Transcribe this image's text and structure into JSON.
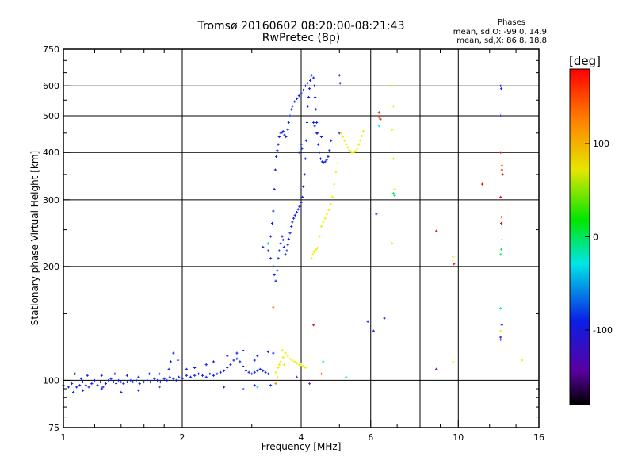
{
  "title": {
    "line1": "Tromsø 20160602 08:20:00-08:21:43",
    "line2": "RwPretec (8p)"
  },
  "phase_info": {
    "heading": "Phases",
    "line_o": "mean, sd,O: -99.0, 14.9",
    "line_x": "mean, sd,X:  86.8, 18.8"
  },
  "colorbar": {
    "unit_label": "[deg]",
    "tick_labels": [
      "100",
      "0",
      "-100"
    ],
    "tick_values": [
      100,
      0,
      -100
    ],
    "range": [
      -180,
      180
    ]
  },
  "chart_data": {
    "type": "scatter",
    "xlabel": "Frequency [MHz]",
    "ylabel": "Stationary phase Virtual Height [km]",
    "x_scale": "log",
    "y_scale": "log",
    "xlim": [
      1,
      16
    ],
    "ylim": [
      75,
      750
    ],
    "x_ticks": [
      1,
      2,
      4,
      6,
      10,
      16
    ],
    "x_tick_labels": [
      "1",
      "2",
      "4",
      "6",
      "10",
      "16"
    ],
    "x_gridlines": [
      2,
      4,
      6,
      8,
      10
    ],
    "y_ticks": [
      75,
      100,
      200,
      300,
      400,
      500,
      600,
      750
    ],
    "y_tick_labels": [
      "75",
      "100",
      "200",
      "300",
      "400",
      "500",
      "600",
      "750"
    ],
    "grid": true,
    "series": [
      {
        "color": "#0a1ee6",
        "points": [
          [
            1.0,
            97
          ],
          [
            1.03,
            96
          ],
          [
            1.05,
            98
          ],
          [
            1.08,
            96
          ],
          [
            1.1,
            97
          ],
          [
            1.12,
            99
          ],
          [
            1.14,
            97
          ],
          [
            1.16,
            96
          ],
          [
            1.18,
            98
          ],
          [
            1.2,
            100
          ],
          [
            1.22,
            97
          ],
          [
            1.24,
            99
          ],
          [
            1.26,
            96
          ],
          [
            1.28,
            98
          ],
          [
            1.3,
            100
          ],
          [
            1.32,
            101
          ],
          [
            1.34,
            99
          ],
          [
            1.36,
            98
          ],
          [
            1.38,
            100
          ],
          [
            1.4,
            99
          ],
          [
            1.42,
            98
          ],
          [
            1.45,
            99
          ],
          [
            1.48,
            100
          ],
          [
            1.5,
            99
          ],
          [
            1.53,
            100
          ],
          [
            1.56,
            98
          ],
          [
            1.6,
            99
          ],
          [
            1.63,
            100
          ],
          [
            1.66,
            99
          ],
          [
            1.7,
            101
          ],
          [
            1.73,
            100
          ],
          [
            1.76,
            99
          ],
          [
            1.8,
            101
          ],
          [
            1.83,
            100
          ],
          [
            1.86,
            102
          ],
          [
            1.9,
            101
          ],
          [
            1.93,
            100
          ],
          [
            1.96,
            102
          ],
          [
            2.0,
            101
          ],
          [
            2.05,
            103
          ],
          [
            2.1,
            102
          ],
          [
            2.15,
            103
          ],
          [
            2.2,
            104
          ],
          [
            2.25,
            103
          ],
          [
            2.3,
            102
          ],
          [
            2.35,
            104
          ],
          [
            2.4,
            103
          ],
          [
            2.45,
            104
          ],
          [
            2.5,
            105
          ],
          [
            2.55,
            106
          ],
          [
            2.6,
            108
          ],
          [
            2.65,
            110
          ],
          [
            2.7,
            113
          ],
          [
            2.75,
            114
          ],
          [
            2.8,
            112
          ],
          [
            2.85,
            109
          ],
          [
            2.9,
            106
          ],
          [
            2.95,
            105
          ],
          [
            3.0,
            104
          ],
          [
            3.05,
            105
          ],
          [
            3.1,
            106
          ],
          [
            3.15,
            107
          ],
          [
            3.2,
            106
          ],
          [
            3.25,
            105
          ],
          [
            3.3,
            104
          ],
          [
            1.07,
            104
          ],
          [
            1.11,
            101
          ],
          [
            1.15,
            103
          ],
          [
            1.25,
            103
          ],
          [
            1.35,
            104
          ],
          [
            1.45,
            103
          ],
          [
            1.55,
            102
          ],
          [
            1.65,
            104
          ],
          [
            1.75,
            104
          ],
          [
            1.85,
            107
          ],
          [
            1.87,
            112
          ],
          [
            1.9,
            118
          ],
          [
            1.95,
            113
          ],
          [
            2.05,
            107
          ],
          [
            2.15,
            108
          ],
          [
            2.3,
            110
          ],
          [
            2.4,
            112
          ],
          [
            2.6,
            116
          ],
          [
            2.75,
            118
          ],
          [
            2.85,
            120
          ],
          [
            3.05,
            113
          ],
          [
            3.1,
            116
          ],
          [
            3.3,
            119
          ],
          [
            3.4,
            118
          ],
          [
            1.06,
            93
          ],
          [
            1.12,
            94
          ],
          [
            1.25,
            95
          ],
          [
            1.4,
            93
          ],
          [
            1.55,
            94
          ],
          [
            1.75,
            96
          ],
          [
            2.55,
            96
          ],
          [
            2.85,
            95
          ],
          [
            3.05,
            97
          ],
          [
            3.35,
            97
          ],
          [
            3.2,
            225
          ],
          [
            3.3,
            220
          ],
          [
            3.35,
            210
          ],
          [
            3.4,
            200
          ],
          [
            3.42,
            190
          ],
          [
            3.45,
            183
          ],
          [
            3.48,
            195
          ],
          [
            3.5,
            210
          ],
          [
            3.52,
            220
          ],
          [
            3.55,
            230
          ],
          [
            3.58,
            240
          ],
          [
            3.6,
            235
          ],
          [
            3.62,
            225
          ],
          [
            3.65,
            215
          ],
          [
            3.68,
            220
          ],
          [
            3.7,
            228
          ],
          [
            3.72,
            236
          ],
          [
            3.75,
            245
          ],
          [
            3.78,
            255
          ],
          [
            3.8,
            262
          ],
          [
            3.83,
            268
          ],
          [
            3.86,
            273
          ],
          [
            3.9,
            278
          ],
          [
            3.93,
            283
          ],
          [
            3.96,
            288
          ],
          [
            4.0,
            295
          ],
          [
            4.03,
            305
          ],
          [
            4.05,
            325
          ],
          [
            4.08,
            350
          ],
          [
            4.1,
            385
          ],
          [
            4.12,
            430
          ],
          [
            4.14,
            480
          ],
          [
            4.16,
            530
          ],
          [
            4.18,
            560
          ],
          [
            4.2,
            590
          ],
          [
            4.22,
            620
          ],
          [
            4.25,
            640
          ],
          [
            3.35,
            240
          ],
          [
            3.38,
            260
          ],
          [
            3.4,
            280
          ],
          [
            3.42,
            320
          ],
          [
            3.44,
            360
          ],
          [
            3.46,
            390
          ],
          [
            3.48,
            405
          ],
          [
            3.5,
            420
          ],
          [
            3.52,
            440
          ],
          [
            3.55,
            450
          ],
          [
            3.58,
            452
          ],
          [
            3.6,
            455
          ],
          [
            3.63,
            445
          ],
          [
            3.66,
            440
          ],
          [
            3.7,
            460
          ],
          [
            3.72,
            480
          ],
          [
            3.75,
            500
          ],
          [
            3.78,
            520
          ],
          [
            3.8,
            530
          ],
          [
            3.85,
            545
          ],
          [
            3.9,
            555
          ],
          [
            3.95,
            565
          ],
          [
            4.0,
            575
          ],
          [
            4.05,
            585
          ],
          [
            4.1,
            600
          ],
          [
            4.15,
            610
          ],
          [
            4.3,
            630
          ],
          [
            4.32,
            600
          ],
          [
            4.34,
            560
          ],
          [
            4.36,
            520
          ],
          [
            4.38,
            480
          ],
          [
            4.4,
            450
          ],
          [
            4.42,
            420
          ],
          [
            4.45,
            400
          ],
          [
            4.48,
            385
          ],
          [
            4.52,
            378
          ],
          [
            4.56,
            376
          ],
          [
            4.6,
            378
          ],
          [
            4.64,
            382
          ],
          [
            4.68,
            390
          ],
          [
            4.72,
            405
          ],
          [
            4.76,
            430
          ],
          [
            4.3,
            480
          ],
          [
            4.33,
            470
          ],
          [
            4.38,
            450
          ],
          [
            4.5,
            440
          ],
          [
            5.0,
            640
          ],
          [
            5.02,
            610
          ],
          [
            5.0,
            450
          ],
          [
            4.0,
            420
          ],
          [
            3.95,
            400
          ],
          [
            4.02,
            410
          ],
          [
            5.9,
            143
          ],
          [
            6.1,
            135
          ],
          [
            6.5,
            146
          ],
          [
            8.8,
            107
          ],
          [
            12.8,
            600
          ],
          [
            12.85,
            590
          ],
          [
            12.8,
            500
          ],
          [
            12.8,
            130
          ],
          [
            12.9,
            140
          ],
          [
            6.2,
            275
          ]
        ]
      },
      {
        "color": "#eeee00",
        "points": [
          [
            3.45,
            105
          ],
          [
            3.5,
            108
          ],
          [
            3.55,
            112
          ],
          [
            3.6,
            115
          ],
          [
            3.65,
            118
          ],
          [
            3.7,
            116
          ],
          [
            3.75,
            114
          ],
          [
            3.8,
            113
          ],
          [
            3.85,
            112
          ],
          [
            3.9,
            111
          ],
          [
            3.95,
            110
          ],
          [
            4.0,
            110
          ],
          [
            4.05,
            109
          ],
          [
            4.1,
            108
          ],
          [
            3.48,
            102
          ],
          [
            3.52,
            110
          ],
          [
            3.58,
            120
          ],
          [
            3.62,
            110
          ],
          [
            4.25,
            210
          ],
          [
            4.28,
            215
          ],
          [
            4.31,
            218
          ],
          [
            4.34,
            220
          ],
          [
            4.37,
            222
          ],
          [
            4.4,
            224
          ],
          [
            4.45,
            240
          ],
          [
            4.5,
            255
          ],
          [
            4.55,
            262
          ],
          [
            4.6,
            268
          ],
          [
            4.65,
            275
          ],
          [
            4.7,
            282
          ],
          [
            4.75,
            292
          ],
          [
            4.8,
            305
          ],
          [
            4.85,
            330
          ],
          [
            4.9,
            355
          ],
          [
            4.95,
            375
          ],
          [
            5.05,
            450
          ],
          [
            5.1,
            440
          ],
          [
            5.15,
            430
          ],
          [
            5.2,
            420
          ],
          [
            5.25,
            412
          ],
          [
            5.3,
            405
          ],
          [
            5.35,
            402
          ],
          [
            5.4,
            400
          ],
          [
            5.45,
            401
          ],
          [
            5.5,
            404
          ],
          [
            5.55,
            410
          ],
          [
            5.6,
            420
          ],
          [
            5.65,
            430
          ],
          [
            5.7,
            442
          ],
          [
            5.75,
            455
          ],
          [
            6.8,
            600
          ],
          [
            6.85,
            530
          ],
          [
            6.8,
            460
          ],
          [
            6.85,
            385
          ],
          [
            6.8,
            230
          ],
          [
            9.7,
            212
          ],
          [
            9.7,
            112
          ],
          [
            12.8,
            135
          ],
          [
            14.5,
            113
          ],
          [
            6.9,
            320
          ]
        ]
      },
      {
        "color": "#00e65a",
        "points": [
          [
            6.85,
            312
          ],
          [
            6.9,
            308
          ],
          [
            12.8,
            215
          ],
          [
            12.85,
            222
          ],
          [
            3.3,
            230
          ]
        ]
      },
      {
        "color": "#e60a0a",
        "points": [
          [
            4.3,
            140
          ],
          [
            6.3,
            510
          ],
          [
            6.35,
            490
          ],
          [
            12.8,
            400
          ],
          [
            12.9,
            360
          ],
          [
            12.95,
            350
          ],
          [
            12.8,
            305
          ],
          [
            12.85,
            260
          ],
          [
            12.9,
            235
          ],
          [
            8.8,
            248
          ],
          [
            9.75,
            203
          ],
          [
            11.5,
            330
          ]
        ]
      },
      {
        "color": "#ff8000",
        "points": [
          [
            3.4,
            156
          ],
          [
            6.3,
            495
          ],
          [
            12.9,
            370
          ],
          [
            12.85,
            270
          ],
          [
            3.45,
            98
          ],
          [
            4.5,
            104
          ]
        ]
      },
      {
        "color": "#00e6e6",
        "points": [
          [
            4.55,
            112
          ],
          [
            5.2,
            102
          ],
          [
            6.3,
            470
          ],
          [
            12.8,
            155
          ],
          [
            3.1,
            96
          ]
        ]
      },
      {
        "color": "#8c1ec8",
        "points": [
          [
            12.8,
            128
          ],
          [
            8.8,
            107
          ],
          [
            4.2,
            98
          ],
          [
            3.9,
            102
          ]
        ]
      }
    ]
  }
}
